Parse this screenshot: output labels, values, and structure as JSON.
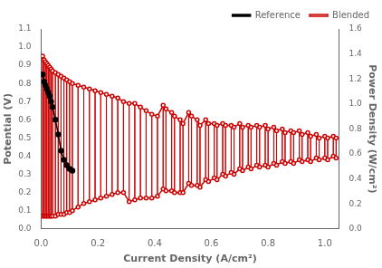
{
  "chart_data": {
    "type": "line",
    "xlabel": "Current Density (A/cm²)",
    "ylabel": "Potential (V)",
    "y2label": "Power Density (W/cm²)",
    "xlim": [
      0,
      1.05
    ],
    "xticks": [
      {
        "value": 0,
        "label": "0.0"
      },
      0.2,
      0.4,
      0.6,
      0.8,
      {
        "value": 1.0,
        "label": "1.0"
      }
    ],
    "ylim": [
      0.0,
      1.1
    ],
    "yticks": [
      {
        "value": 0.0,
        "label": "0.0"
      },
      0.1,
      0.2,
      0.3,
      0.4,
      0.5,
      0.6,
      0.7,
      0.8,
      0.9,
      {
        "value": 1.0,
        "label": "1.0"
      },
      1.1
    ],
    "y2lim": [
      0.0,
      1.6
    ],
    "y2ticks": [
      {
        "value": 0.0,
        "label": "0.0"
      },
      0.2,
      0.4,
      0.6,
      0.8,
      {
        "value": 1.0,
        "label": "1.0"
      },
      1.2,
      1.4,
      1.6
    ],
    "grid": false,
    "legend": "upper right",
    "series": [
      {
        "name": "Reference",
        "color": "#000000",
        "marker": "circle",
        "x": [
          0.005,
          0.01,
          0.015,
          0.02,
          0.025,
          0.03,
          0.035,
          0.04,
          0.05,
          0.06,
          0.07,
          0.08,
          0.09,
          0.1,
          0.11
        ],
        "values": [
          0.85,
          0.81,
          0.79,
          0.77,
          0.75,
          0.73,
          0.7,
          0.67,
          0.6,
          0.52,
          0.43,
          0.38,
          0.35,
          0.33,
          0.32
        ]
      },
      {
        "name": "Blended",
        "color": "#cc0000",
        "marker": "circle",
        "x": [
          0.005,
          0.01,
          0.015,
          0.02,
          0.025,
          0.03,
          0.035,
          0.04,
          0.05,
          0.06,
          0.07,
          0.08,
          0.09,
          0.1,
          0.11,
          0.13,
          0.15,
          0.17,
          0.19,
          0.21,
          0.23,
          0.25,
          0.27,
          0.29,
          0.31,
          0.33,
          0.35,
          0.37,
          0.39,
          0.41,
          0.43,
          0.44,
          0.46,
          0.47,
          0.49,
          0.5,
          0.52,
          0.53,
          0.55,
          0.56,
          0.58,
          0.59,
          0.61,
          0.62,
          0.64,
          0.65,
          0.67,
          0.68,
          0.7,
          0.71,
          0.73,
          0.74,
          0.76,
          0.77,
          0.79,
          0.8,
          0.82,
          0.83,
          0.85,
          0.86,
          0.88,
          0.89,
          0.91,
          0.92,
          0.94,
          0.95,
          0.97,
          0.98,
          1.0,
          1.01,
          1.03,
          1.04
        ],
        "values": [
          0.95,
          0.93,
          0.92,
          0.91,
          0.9,
          0.89,
          0.88,
          0.87,
          0.86,
          0.85,
          0.84,
          0.83,
          0.82,
          0.81,
          0.8,
          0.79,
          0.78,
          0.77,
          0.76,
          0.75,
          0.74,
          0.73,
          0.72,
          0.7,
          0.69,
          0.69,
          0.67,
          0.65,
          0.63,
          0.62,
          0.68,
          0.66,
          0.64,
          0.62,
          0.6,
          0.58,
          0.64,
          0.62,
          0.6,
          0.57,
          0.6,
          0.58,
          0.58,
          0.57,
          0.58,
          0.57,
          0.57,
          0.56,
          0.58,
          0.56,
          0.57,
          0.56,
          0.57,
          0.56,
          0.57,
          0.55,
          0.56,
          0.54,
          0.55,
          0.53,
          0.54,
          0.53,
          0.54,
          0.52,
          0.53,
          0.51,
          0.52,
          0.5,
          0.51,
          0.5,
          0.51,
          0.5
        ]
      },
      {
        "color": "#cc0000",
        "marker": "circle",
        "x": [
          0.005,
          0.01,
          0.015,
          0.02,
          0.025,
          0.03,
          0.035,
          0.04,
          0.05,
          0.06,
          0.07,
          0.08,
          0.09,
          0.1,
          0.11,
          0.13,
          0.15,
          0.17,
          0.19,
          0.21,
          0.23,
          0.25,
          0.27,
          0.29,
          0.31,
          0.33,
          0.35,
          0.37,
          0.39,
          0.41,
          0.43,
          0.44,
          0.46,
          0.47,
          0.49,
          0.5,
          0.52,
          0.53,
          0.55,
          0.56,
          0.58,
          0.59,
          0.61,
          0.62,
          0.64,
          0.65,
          0.67,
          0.68,
          0.7,
          0.71,
          0.73,
          0.74,
          0.76,
          0.77,
          0.79,
          0.8,
          0.82,
          0.83,
          0.85,
          0.86,
          0.88,
          0.89,
          0.91,
          0.92,
          0.94,
          0.95,
          0.97,
          0.98,
          1.0,
          1.01,
          1.03,
          1.04
        ],
        "values": [
          0.07,
          0.07,
          0.07,
          0.07,
          0.07,
          0.07,
          0.07,
          0.07,
          0.07,
          0.08,
          0.08,
          0.08,
          0.09,
          0.09,
          0.1,
          0.12,
          0.14,
          0.15,
          0.16,
          0.17,
          0.18,
          0.19,
          0.2,
          0.2,
          0.15,
          0.16,
          0.17,
          0.17,
          0.17,
          0.18,
          0.22,
          0.21,
          0.21,
          0.2,
          0.2,
          0.2,
          0.25,
          0.24,
          0.24,
          0.23,
          0.27,
          0.26,
          0.28,
          0.27,
          0.3,
          0.29,
          0.31,
          0.3,
          0.33,
          0.32,
          0.34,
          0.33,
          0.35,
          0.34,
          0.35,
          0.34,
          0.36,
          0.35,
          0.37,
          0.36,
          0.37,
          0.36,
          0.38,
          0.37,
          0.38,
          0.37,
          0.39,
          0.38,
          0.39,
          0.38,
          0.4,
          0.39
        ]
      }
    ]
  }
}
